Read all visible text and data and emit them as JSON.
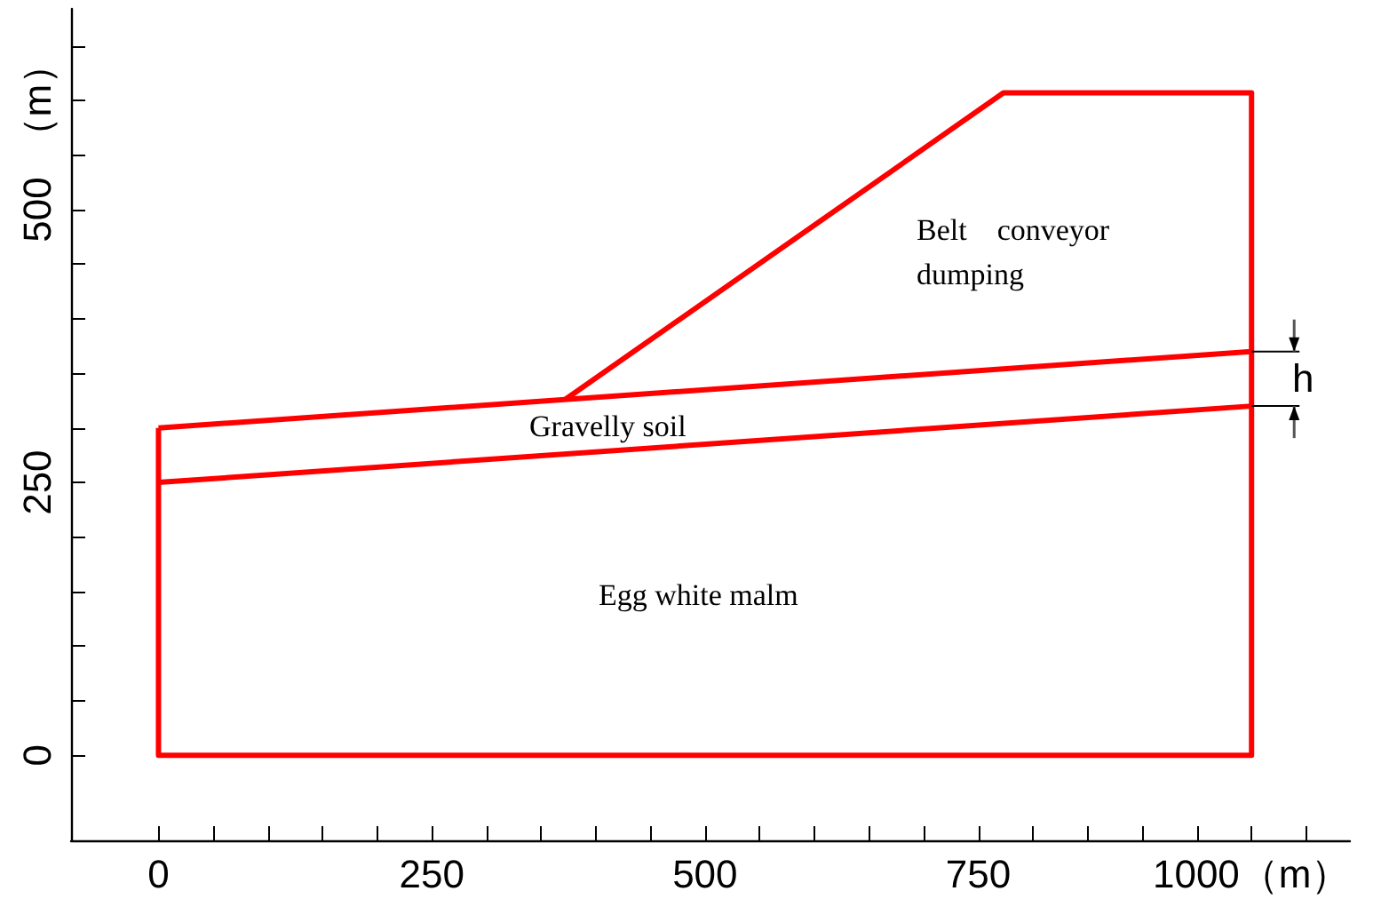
{
  "chart_data": {
    "type": "line",
    "series": [
      {
        "color": "#ff0000",
        "x": [
          0,
          0,
          1000,
          1000,
          773,
          372
        ],
        "values": [
          300,
          0,
          0,
          607,
          607,
          326
        ]
      },
      {
        "color": "#ff0000",
        "x": [
          0,
          1000
        ],
        "values": [
          300,
          370
        ]
      },
      {
        "color": "#ff0000",
        "x": [
          0,
          1000
        ],
        "values": [
          250,
          320
        ]
      }
    ],
    "xlim": [
      -80,
      1090
    ],
    "ylim": [
      -78,
      684
    ],
    "xticks": [
      0,
      {
        "value": 50,
        "label": null
      },
      {
        "value": 100,
        "label": null
      },
      {
        "value": 150,
        "label": null
      },
      {
        "value": 200,
        "label": null
      },
      250,
      {
        "value": 300,
        "label": null
      },
      {
        "value": 350,
        "label": null
      },
      {
        "value": 400,
        "label": null
      },
      {
        "value": 450,
        "label": null
      },
      500,
      {
        "value": 550,
        "label": null
      },
      {
        "value": 600,
        "label": null
      },
      {
        "value": 650,
        "label": null
      },
      {
        "value": 700,
        "label": null
      },
      750,
      {
        "value": 800,
        "label": null
      },
      {
        "value": 850,
        "label": null
      },
      {
        "value": 900,
        "label": null
      },
      {
        "value": 950,
        "label": null
      },
      {
        "value": 1000,
        "label": "1000（m）"
      },
      {
        "value": 1050,
        "label": null
      }
    ],
    "yticks": [
      0,
      {
        "value": 50,
        "label": null
      },
      {
        "value": 100,
        "label": null
      },
      {
        "value": 150,
        "label": null
      },
      {
        "value": 200,
        "label": null
      },
      250,
      {
        "value": 300,
        "label": null
      },
      {
        "value": 350,
        "label": null
      },
      {
        "value": 400,
        "label": null
      },
      {
        "value": 450,
        "label": null
      },
      500,
      {
        "value": 550,
        "label": null
      },
      {
        "value": 600,
        "label": "（m）"
      },
      {
        "value": 650,
        "label": null
      }
    ],
    "annotations": [
      "Belt　conveyor dumping",
      "Gravelly soil",
      "Egg white malm",
      "h"
    ],
    "grid": false,
    "marker": "none",
    "line_style": "solid"
  }
}
